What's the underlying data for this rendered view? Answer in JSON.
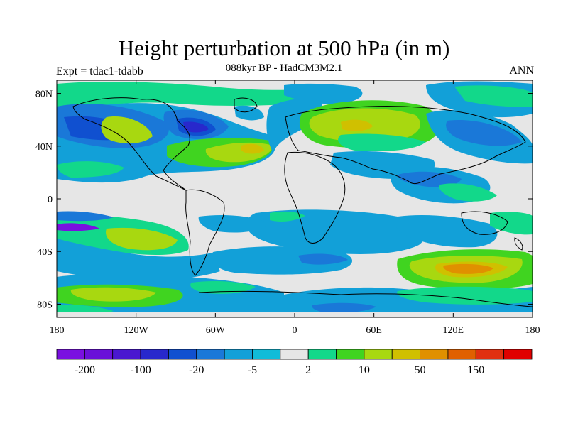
{
  "header": {
    "title": "Height perturbation at 500 hPa (in m)",
    "subtitle": "088kyr BP - HadCM3M2.1",
    "experiment": "Expt = tdac1-tdabb",
    "season": "ANN"
  },
  "map": {
    "projection": "equirectangular",
    "lon_range": [
      -180,
      180
    ],
    "lat_range": [
      -90,
      90
    ],
    "lon_ticks": [
      {
        "value": -180,
        "label": "180"
      },
      {
        "value": -120,
        "label": "120W"
      },
      {
        "value": -60,
        "label": "60W"
      },
      {
        "value": 0,
        "label": "0"
      },
      {
        "value": 60,
        "label": "60E"
      },
      {
        "value": 120,
        "label": "120E"
      },
      {
        "value": 180,
        "label": "180"
      }
    ],
    "lat_ticks": [
      {
        "value": 80,
        "label": "80N"
      },
      {
        "value": 40,
        "label": "40N"
      },
      {
        "value": 0,
        "label": "0"
      },
      {
        "value": -40,
        "label": "40S"
      },
      {
        "value": -80,
        "label": "80S"
      }
    ]
  },
  "colorbar": {
    "colors": [
      "#7a10e0",
      "#6a10d8",
      "#4a18d0",
      "#2828cc",
      "#1050d0",
      "#1a78d8",
      "#12a0d8",
      "#10bcd8",
      "#e6e6e6",
      "#12d88a",
      "#40d420",
      "#a8d810",
      "#d0c000",
      "#e09000",
      "#e06000",
      "#e03010",
      "#e00000"
    ],
    "labels": [
      {
        "after_index": 0,
        "text": "-200"
      },
      {
        "after_index": 2,
        "text": "-100"
      },
      {
        "after_index": 4,
        "text": "-20"
      },
      {
        "after_index": 6,
        "text": "-5"
      },
      {
        "after_index": 8,
        "text": "2"
      },
      {
        "after_index": 10,
        "text": "10"
      },
      {
        "after_index": 12,
        "text": "50"
      },
      {
        "after_index": 14,
        "text": "150"
      }
    ]
  }
}
